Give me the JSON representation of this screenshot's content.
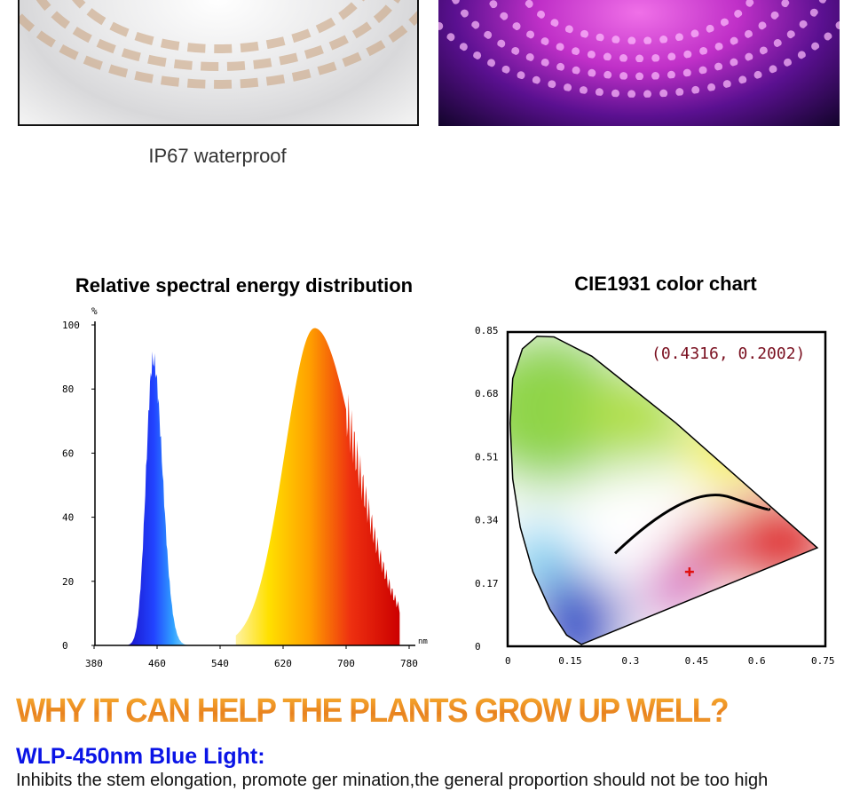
{
  "caption_left": "IP67 waterproof",
  "spectral": {
    "title": "Relative spectral energy distribution",
    "y_unit": "%",
    "x_unit": "nm",
    "y_ticks": [
      "100",
      "80",
      "60",
      "40",
      "20",
      "0"
    ],
    "x_ticks": [
      "380",
      "460",
      "540",
      "620",
      "700",
      "780"
    ],
    "blue_peak_nm": 455,
    "blue_peak_pct": 89,
    "broad_peak_nm": 660,
    "broad_peak_pct": 99
  },
  "cie": {
    "title": "CIE1931 color chart",
    "y_ticks": [
      "0.85",
      "0.68",
      "0.51",
      "0.34",
      "0.17",
      "0"
    ],
    "x_ticks": [
      "0",
      "0.15",
      "0.3",
      "0.45",
      "0.6",
      "0.75"
    ],
    "coord_label": "(0.4316, 0.2002)",
    "point": [
      0.4316,
      0.2002
    ]
  },
  "headline": "WHY IT CAN HELP THE PLANTS GROW UP WELL?",
  "subheading": "WLP-450nm Blue Light:",
  "body": "Inhibits the stem elongation, promote ger mination,the general proportion should not be too high"
}
